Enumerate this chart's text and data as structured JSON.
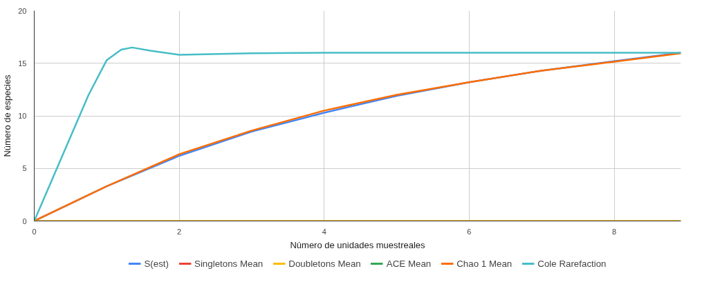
{
  "chart_data": {
    "type": "line",
    "xlabel": "Número de unidades muestreales",
    "ylabel": "Número de especies",
    "x": [
      0,
      1,
      2,
      3,
      4,
      5,
      6,
      7,
      8,
      8.92
    ],
    "xlim": [
      0,
      8.92
    ],
    "xticks": [
      0,
      2,
      4,
      6,
      8
    ],
    "ylim": [
      0,
      20
    ],
    "yticks": [
      0,
      5,
      10,
      15,
      20
    ],
    "grid": true,
    "legend": "bottom",
    "marker": "none",
    "line_style": "solid",
    "series": [
      {
        "name": "S(est)",
        "color": "#4285f4",
        "values": [
          0,
          3.3,
          6.2,
          8.5,
          10.3,
          11.9,
          13.2,
          14.3,
          15.2,
          16.0
        ]
      },
      {
        "name": "Singletons Mean",
        "color": "#ea4335",
        "values": [
          null,
          null,
          null,
          null,
          null,
          null,
          null,
          null,
          null,
          null
        ]
      },
      {
        "name": "Doubletons Mean",
        "color": "#fbbc04",
        "values": [
          0,
          0,
          0,
          0,
          0,
          0,
          0,
          0,
          0,
          0
        ]
      },
      {
        "name": "ACE Mean",
        "color": "#34a853",
        "values": [
          null,
          null,
          null,
          null,
          null,
          null,
          null,
          null,
          null,
          null
        ]
      },
      {
        "name": "Chao 1 Mean",
        "color": "#ff6d01",
        "values": [
          0,
          3.3,
          6.35,
          8.6,
          10.5,
          12.0,
          13.2,
          14.3,
          15.15,
          15.95
        ]
      },
      {
        "name": "Cole Rarefaction",
        "color": "#46bdc6",
        "x": [
          0,
          0.25,
          0.5,
          0.75,
          1,
          1.2,
          1.35,
          1.6,
          2,
          3,
          4,
          6,
          8,
          8.92
        ],
        "values": [
          0,
          4,
          8,
          12,
          15.3,
          16.3,
          16.5,
          16.2,
          15.8,
          15.95,
          16,
          16,
          16,
          16
        ]
      }
    ]
  }
}
